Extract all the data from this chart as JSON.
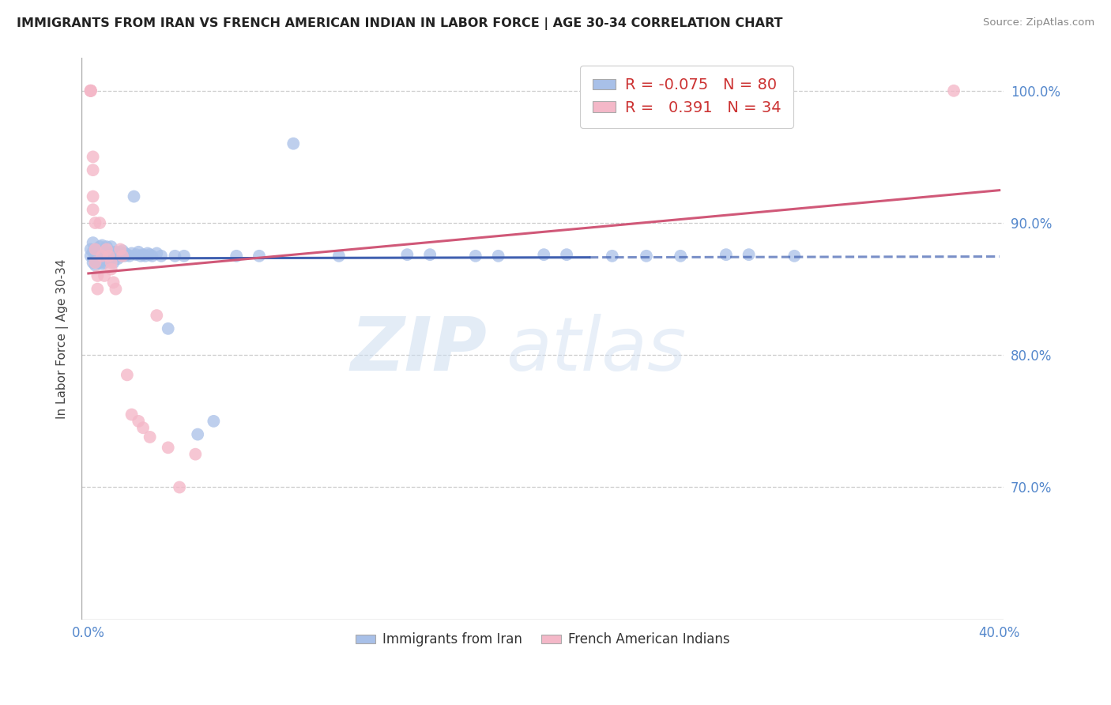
{
  "title": "IMMIGRANTS FROM IRAN VS FRENCH AMERICAN INDIAN IN LABOR FORCE | AGE 30-34 CORRELATION CHART",
  "source": "Source: ZipAtlas.com",
  "ylabel": "In Labor Force | Age 30-34",
  "x_min": 0.0,
  "x_max": 0.4,
  "y_min": 0.6,
  "y_max": 1.025,
  "x_ticks": [
    0.0,
    0.05,
    0.1,
    0.15,
    0.2,
    0.25,
    0.3,
    0.35,
    0.4
  ],
  "y_ticks": [
    0.7,
    0.8,
    0.9,
    1.0
  ],
  "iran_R": -0.075,
  "iran_N": 80,
  "french_R": 0.391,
  "french_N": 34,
  "iran_color": "#a8c0e8",
  "french_color": "#f4b8c8",
  "iran_line_color": "#4060b0",
  "french_line_color": "#d05878",
  "watermark_zip": "ZIP",
  "watermark_atlas": "atlas",
  "iran_x": [
    0.001,
    0.001,
    0.002,
    0.002,
    0.002,
    0.003,
    0.003,
    0.003,
    0.003,
    0.004,
    0.004,
    0.004,
    0.005,
    0.005,
    0.005,
    0.005,
    0.006,
    0.006,
    0.006,
    0.006,
    0.007,
    0.007,
    0.007,
    0.007,
    0.008,
    0.008,
    0.008,
    0.009,
    0.009,
    0.01,
    0.01,
    0.01,
    0.011,
    0.011,
    0.011,
    0.012,
    0.012,
    0.013,
    0.013,
    0.014,
    0.014,
    0.015,
    0.015,
    0.016,
    0.016,
    0.017,
    0.018,
    0.019,
    0.02,
    0.021,
    0.022,
    0.023,
    0.024,
    0.025,
    0.026,
    0.027,
    0.028,
    0.03,
    0.032,
    0.035,
    0.038,
    0.042,
    0.048,
    0.055,
    0.065,
    0.075,
    0.09,
    0.11,
    0.14,
    0.17,
    0.2,
    0.23,
    0.26,
    0.29,
    0.15,
    0.18,
    0.21,
    0.245,
    0.28,
    0.31
  ],
  "iran_y": [
    0.875,
    0.88,
    0.87,
    0.878,
    0.885,
    0.872,
    0.868,
    0.875,
    0.88,
    0.87,
    0.875,
    0.878,
    0.87,
    0.873,
    0.876,
    0.882,
    0.869,
    0.875,
    0.878,
    0.883,
    0.87,
    0.874,
    0.877,
    0.872,
    0.875,
    0.878,
    0.882,
    0.872,
    0.875,
    0.876,
    0.878,
    0.882,
    0.87,
    0.874,
    0.877,
    0.875,
    0.878,
    0.873,
    0.876,
    0.875,
    0.878,
    0.876,
    0.879,
    0.875,
    0.877,
    0.876,
    0.875,
    0.877,
    0.92,
    0.876,
    0.878,
    0.875,
    0.876,
    0.875,
    0.877,
    0.876,
    0.875,
    0.877,
    0.875,
    0.82,
    0.875,
    0.875,
    0.74,
    0.75,
    0.875,
    0.875,
    0.96,
    0.875,
    0.876,
    0.875,
    0.876,
    0.875,
    0.875,
    0.876,
    0.876,
    0.875,
    0.876,
    0.875,
    0.876,
    0.875
  ],
  "french_x": [
    0.001,
    0.001,
    0.001,
    0.001,
    0.002,
    0.002,
    0.002,
    0.002,
    0.003,
    0.003,
    0.003,
    0.004,
    0.004,
    0.005,
    0.006,
    0.007,
    0.008,
    0.009,
    0.01,
    0.01,
    0.011,
    0.012,
    0.014,
    0.015,
    0.017,
    0.019,
    0.022,
    0.024,
    0.027,
    0.03,
    0.035,
    0.04,
    0.047,
    0.38
  ],
  "french_y": [
    1.0,
    1.0,
    1.0,
    1.0,
    0.95,
    0.94,
    0.92,
    0.91,
    0.9,
    0.88,
    0.87,
    0.86,
    0.85,
    0.9,
    0.875,
    0.86,
    0.88,
    0.875,
    0.87,
    0.865,
    0.855,
    0.85,
    0.88,
    0.875,
    0.785,
    0.755,
    0.75,
    0.745,
    0.738,
    0.83,
    0.73,
    0.7,
    0.725,
    1.0
  ]
}
